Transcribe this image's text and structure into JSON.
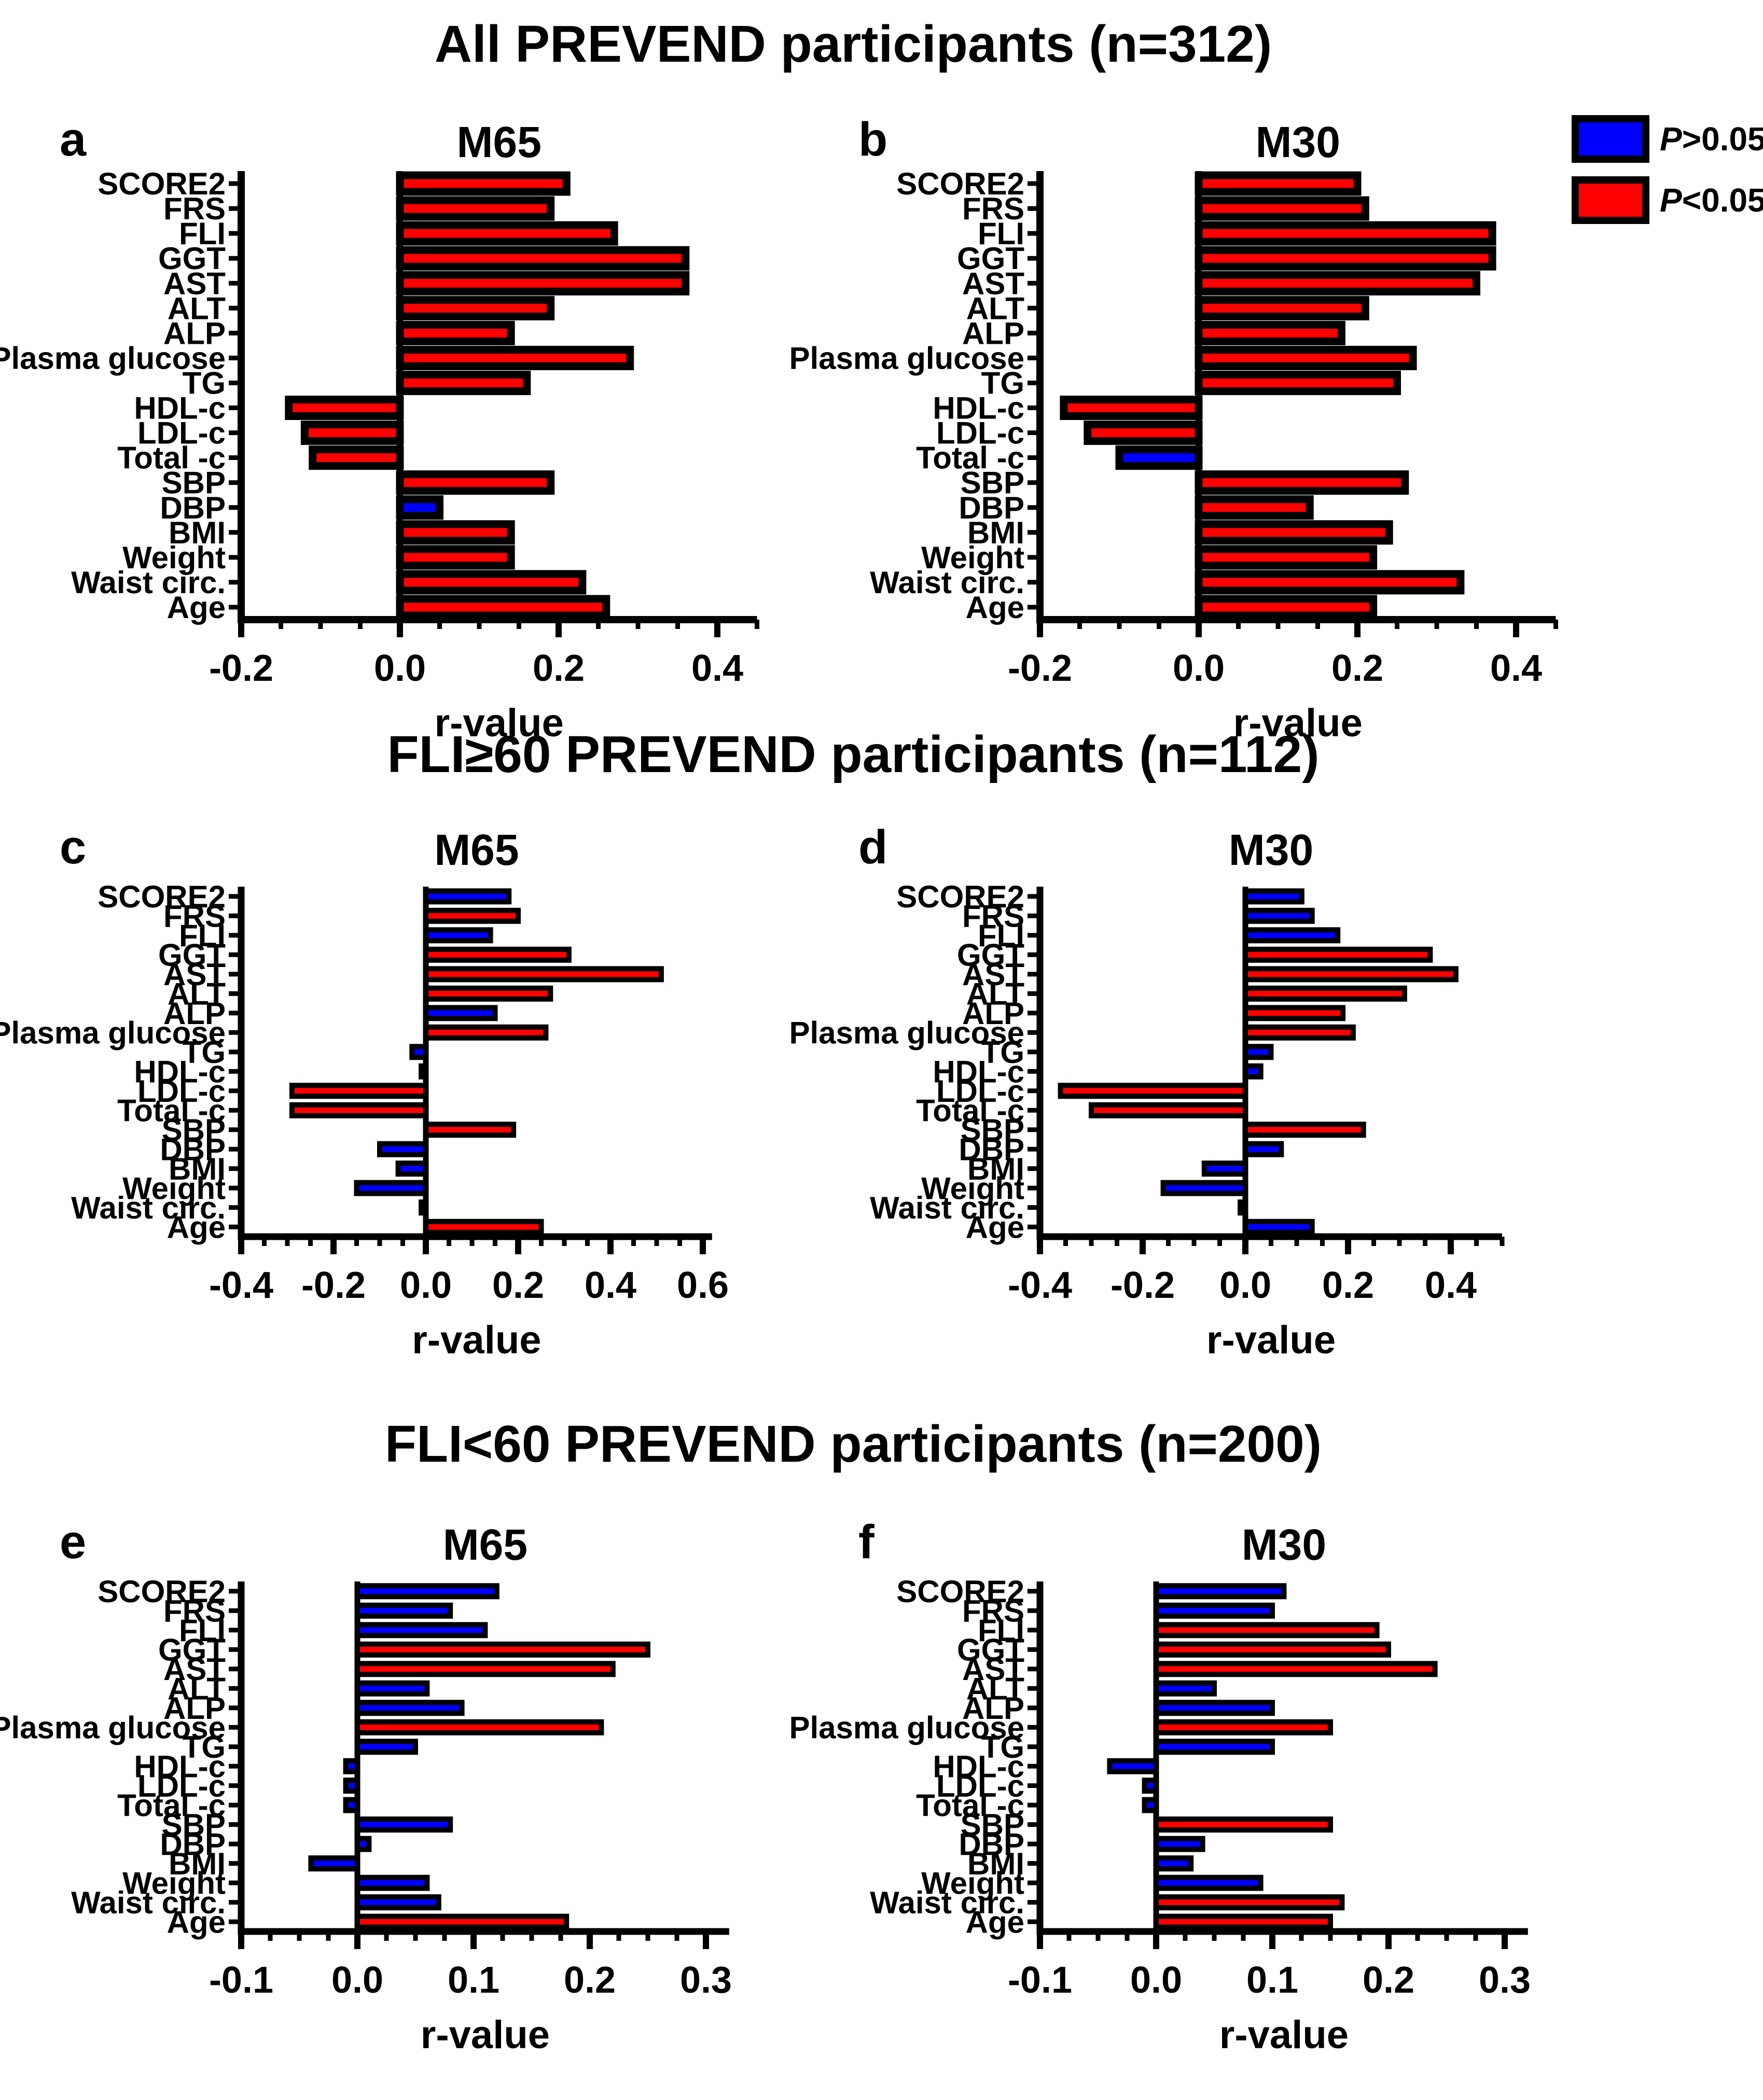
{
  "figure": {
    "sections": [
      {
        "title": "All PREVEND participants (n=312)"
      },
      {
        "title": "FLI≥60 PREVEND participants (n=112)"
      },
      {
        "title": "FLI<60 PREVEND participants (n=200)"
      }
    ],
    "legend": {
      "items": [
        {
          "label": "P>0.05",
          "color": "#0000FF"
        },
        {
          "label": "P<0.05",
          "color": "#FF0000"
        }
      ]
    },
    "categories": [
      "SCORE2",
      "FRS",
      "FLI",
      "GGT",
      "AST",
      "ALT",
      "ALP",
      "Plasma glucose",
      "TG",
      "HDL-c",
      "LDL-c",
      "Total -c",
      "SBP",
      "DBP",
      "BMI",
      "Weight",
      "Waist circ.",
      "Age"
    ],
    "xlabel": "r-value"
  },
  "chart_data": [
    {
      "type": "bar",
      "orientation": "horizontal",
      "panel": "a",
      "title": "M65",
      "section": "All PREVEND participants (n=312)",
      "xlabel": "r-value",
      "grid": false,
      "axis": {
        "min": -0.2,
        "max": 0.45,
        "major_ticks": [
          -0.2,
          0.0,
          0.2,
          0.4
        ],
        "minor_step": 0.05
      },
      "categories_ref": "figure.categories",
      "values": [
        0.21,
        0.19,
        0.27,
        0.36,
        0.36,
        0.19,
        0.14,
        0.29,
        0.16,
        -0.14,
        -0.12,
        -0.11,
        0.19,
        0.05,
        0.14,
        0.14,
        0.23,
        0.26
      ],
      "significant": [
        true,
        true,
        true,
        true,
        true,
        true,
        true,
        true,
        true,
        true,
        true,
        true,
        true,
        false,
        true,
        true,
        true,
        true
      ]
    },
    {
      "type": "bar",
      "orientation": "horizontal",
      "panel": "b",
      "title": "M30",
      "section": "All PREVEND participants (n=312)",
      "xlabel": "r-value",
      "grid": false,
      "axis": {
        "min": -0.2,
        "max": 0.45,
        "major_ticks": [
          -0.2,
          0.0,
          0.2,
          0.4
        ],
        "minor_step": 0.05
      },
      "categories_ref": "figure.categories",
      "values": [
        0.2,
        0.21,
        0.37,
        0.37,
        0.35,
        0.21,
        0.18,
        0.27,
        0.25,
        -0.17,
        -0.14,
        -0.1,
        0.26,
        0.14,
        0.24,
        0.22,
        0.33,
        0.22
      ],
      "significant": [
        true,
        true,
        true,
        true,
        true,
        true,
        true,
        true,
        true,
        true,
        true,
        false,
        true,
        true,
        true,
        true,
        true,
        true
      ]
    },
    {
      "type": "bar",
      "orientation": "horizontal",
      "panel": "c",
      "title": "M65",
      "section": "FLI≥60 PREVEND participants (n=112)",
      "xlabel": "r-value",
      "grid": false,
      "axis": {
        "min": -0.4,
        "max": 0.62,
        "major_ticks": [
          -0.4,
          -0.2,
          0.0,
          0.2,
          0.4,
          0.6
        ],
        "minor_step": 0.05
      },
      "categories_ref": "figure.categories",
      "values": [
        0.18,
        0.2,
        0.14,
        0.31,
        0.51,
        0.27,
        0.15,
        0.26,
        -0.03,
        -0.01,
        -0.29,
        -0.29,
        0.19,
        -0.1,
        -0.06,
        -0.15,
        -0.01,
        0.25
      ],
      "significant": [
        false,
        true,
        false,
        true,
        true,
        true,
        false,
        true,
        false,
        false,
        true,
        true,
        true,
        false,
        false,
        false,
        false,
        true
      ]
    },
    {
      "type": "bar",
      "orientation": "horizontal",
      "panel": "d",
      "title": "M30",
      "section": "FLI≥60 PREVEND participants (n=112)",
      "xlabel": "r-value",
      "grid": false,
      "axis": {
        "min": -0.4,
        "max": 0.5,
        "major_ticks": [
          -0.4,
          -0.2,
          0.0,
          0.2,
          0.4
        ],
        "minor_step": 0.05
      },
      "categories_ref": "figure.categories",
      "values": [
        0.11,
        0.13,
        0.18,
        0.36,
        0.41,
        0.31,
        0.19,
        0.21,
        0.05,
        0.03,
        -0.36,
        -0.3,
        0.23,
        0.07,
        -0.08,
        -0.16,
        -0.01,
        0.13
      ],
      "significant": [
        false,
        false,
        false,
        true,
        true,
        true,
        true,
        true,
        false,
        false,
        true,
        true,
        true,
        false,
        false,
        false,
        false,
        false
      ]
    },
    {
      "type": "bar",
      "orientation": "horizontal",
      "panel": "e",
      "title": "M65",
      "section": "FLI<60 PREVEND participants (n=200)",
      "xlabel": "r-value",
      "grid": false,
      "axis": {
        "min": -0.1,
        "max": 0.32,
        "major_ticks": [
          -0.1,
          0.0,
          0.1,
          0.2,
          0.3
        ],
        "minor_step": 0.025
      },
      "categories_ref": "figure.categories",
      "values": [
        0.12,
        0.08,
        0.11,
        0.25,
        0.22,
        0.06,
        0.09,
        0.21,
        0.05,
        -0.01,
        -0.01,
        -0.01,
        0.08,
        0.01,
        -0.04,
        0.06,
        0.07,
        0.18
      ],
      "significant": [
        false,
        false,
        false,
        true,
        true,
        false,
        false,
        true,
        false,
        false,
        false,
        false,
        false,
        false,
        false,
        false,
        false,
        true
      ]
    },
    {
      "type": "bar",
      "orientation": "horizontal",
      "panel": "f",
      "title": "M30",
      "section": "FLI<60 PREVEND participants (n=200)",
      "xlabel": "r-value",
      "grid": false,
      "axis": {
        "min": -0.1,
        "max": 0.32,
        "major_ticks": [
          -0.1,
          0.0,
          0.1,
          0.2,
          0.3
        ],
        "minor_step": 0.025
      },
      "categories_ref": "figure.categories",
      "values": [
        0.11,
        0.1,
        0.19,
        0.2,
        0.24,
        0.05,
        0.1,
        0.15,
        0.1,
        -0.04,
        -0.01,
        -0.01,
        0.15,
        0.04,
        0.03,
        0.09,
        0.16,
        0.15
      ],
      "significant": [
        false,
        false,
        true,
        true,
        true,
        false,
        false,
        true,
        false,
        false,
        false,
        false,
        true,
        false,
        false,
        false,
        true,
        true
      ]
    }
  ]
}
